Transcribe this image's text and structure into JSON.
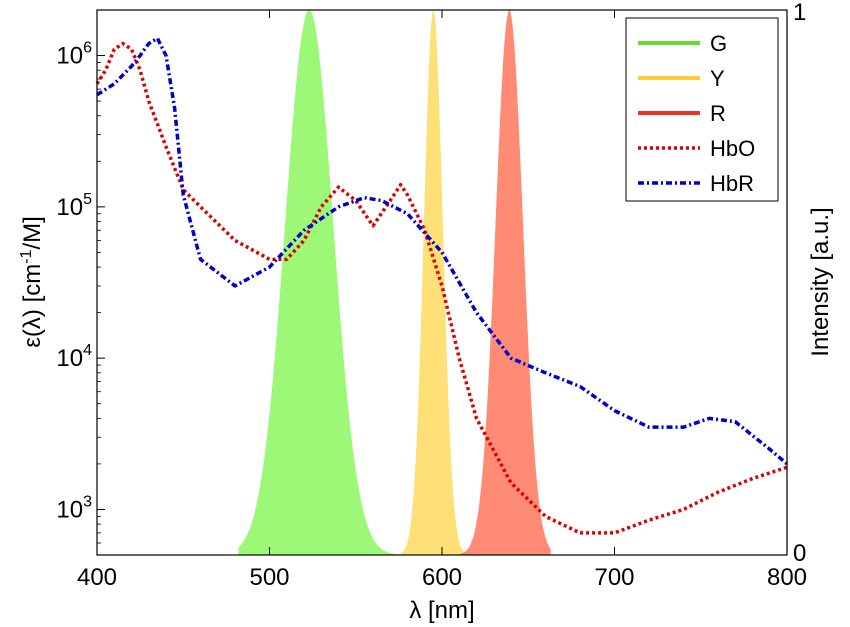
{
  "chart_data": {
    "type": "line",
    "xlabel": "λ [nm]",
    "ylabel_left": "ε(λ) [cm^-1/M]",
    "ylabel_right": "Intensity [a.u.]",
    "xlim": [
      400,
      800
    ],
    "ylim_left": [
      500,
      2000000
    ],
    "yscale_left": "log",
    "ylim_right": [
      0,
      1
    ],
    "x_ticks": [
      "400",
      "500",
      "600",
      "700",
      "800"
    ],
    "y_ticks_left": [
      {
        "value": 1000,
        "base": "10",
        "exp": "3"
      },
      {
        "value": 10000,
        "base": "10",
        "exp": "4"
      },
      {
        "value": 100000,
        "base": "10",
        "exp": "5"
      },
      {
        "value": 1000000,
        "base": "10",
        "exp": "6"
      }
    ],
    "y_ticks_right": [
      "0",
      "1"
    ],
    "legend_position": "top-right",
    "series": [
      {
        "name": "G",
        "kind": "spectrum",
        "axis": "right",
        "color": "#7cf54a",
        "legend_color": "#66dd33",
        "opacity": 0.75,
        "center": 523,
        "sigma": 14,
        "amplitude": 1.0,
        "range": [
          482,
          585
        ]
      },
      {
        "name": "Y",
        "kind": "spectrum",
        "axis": "right",
        "color": "#ffd54a",
        "legend_color": "#ffcc33",
        "opacity": 0.75,
        "center": 595,
        "sigma": 5.5,
        "amplitude": 1.0,
        "range": [
          565,
          615
        ]
      },
      {
        "name": "R",
        "kind": "spectrum",
        "axis": "right",
        "color": "#ff5a3a",
        "legend_color": "#ee3322",
        "opacity": 0.7,
        "center": 639,
        "sigma": 8,
        "amplitude": 1.0,
        "range": [
          602,
          663
        ]
      },
      {
        "name": "HbO",
        "kind": "line",
        "axis": "left",
        "color": "#dd0000",
        "dash": "3,3",
        "x": [
          400,
          405,
          410,
          415,
          420,
          425,
          430,
          440,
          450,
          460,
          480,
          500,
          510,
          520,
          530,
          540,
          550,
          560,
          570,
          576,
          580,
          590,
          600,
          610,
          620,
          640,
          660,
          680,
          700,
          720,
          740,
          760,
          780,
          800
        ],
        "y": [
          650000,
          800000,
          1100000,
          1200000,
          1100000,
          800000,
          500000,
          250000,
          130000,
          100000,
          60000,
          45000,
          45000,
          60000,
          100000,
          135000,
          110000,
          75000,
          110000,
          140000,
          120000,
          70000,
          30000,
          10000,
          4000,
          1500,
          900,
          700,
          700,
          850,
          1000,
          1300,
          1600,
          1900
        ]
      },
      {
        "name": "HbR",
        "kind": "line",
        "axis": "left",
        "color": "#0000cc",
        "dash": "6,3,2,3",
        "x": [
          400,
          410,
          420,
          425,
          430,
          435,
          440,
          445,
          450,
          460,
          480,
          500,
          520,
          540,
          555,
          565,
          580,
          600,
          620,
          640,
          660,
          680,
          700,
          720,
          740,
          755,
          770,
          790,
          800
        ],
        "y": [
          550000,
          650000,
          850000,
          1000000,
          1200000,
          1300000,
          1000000,
          450000,
          120000,
          45000,
          30000,
          40000,
          70000,
          100000,
          115000,
          110000,
          90000,
          50000,
          20000,
          10000,
          8000,
          6500,
          4500,
          3500,
          3500,
          4000,
          3800,
          2500,
          2000
        ]
      }
    ]
  }
}
